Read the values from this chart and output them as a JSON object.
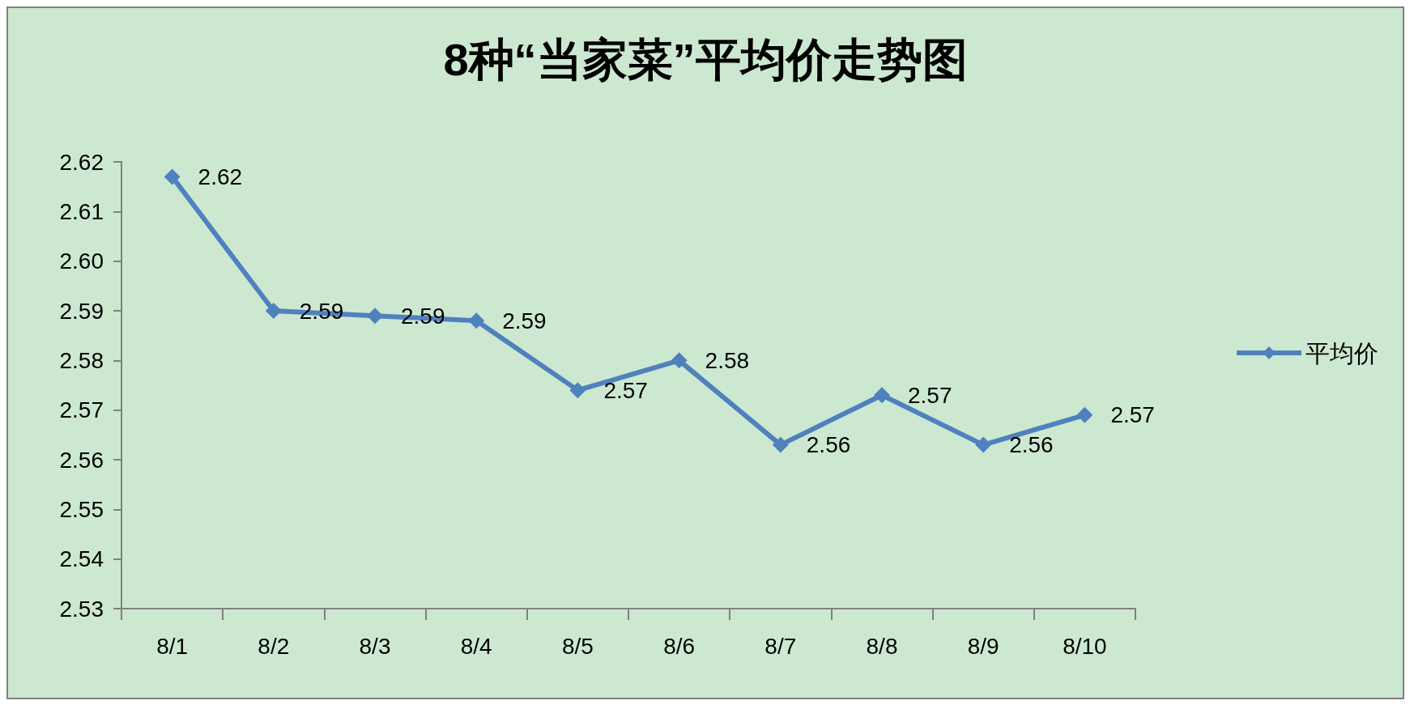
{
  "chart_data": {
    "type": "line",
    "title": "8种“当家菜”平均价走势图",
    "categories": [
      "8/1",
      "8/2",
      "8/3",
      "8/4",
      "8/5",
      "8/6",
      "8/7",
      "8/8",
      "8/9",
      "8/10"
    ],
    "series": [
      {
        "name": "平均价",
        "color": "#4f81bd",
        "values": [
          2.617,
          2.59,
          2.589,
          2.588,
          2.574,
          2.58,
          2.563,
          2.573,
          2.563,
          2.569
        ],
        "value_labels": [
          "2.62",
          "2.59",
          "2.59",
          "2.59",
          "2.57",
          "2.58",
          "2.56",
          "2.57",
          "2.56",
          "2.57"
        ]
      }
    ],
    "ylim": [
      2.53,
      2.62
    ],
    "yticks": [
      2.53,
      2.54,
      2.55,
      2.56,
      2.57,
      2.58,
      2.59,
      {
        "value": 2.6,
        "label": "2.60"
      },
      2.61,
      2.62
    ],
    "grid": false,
    "legend": "right",
    "marker": "diamond",
    "line_style": "solid"
  }
}
